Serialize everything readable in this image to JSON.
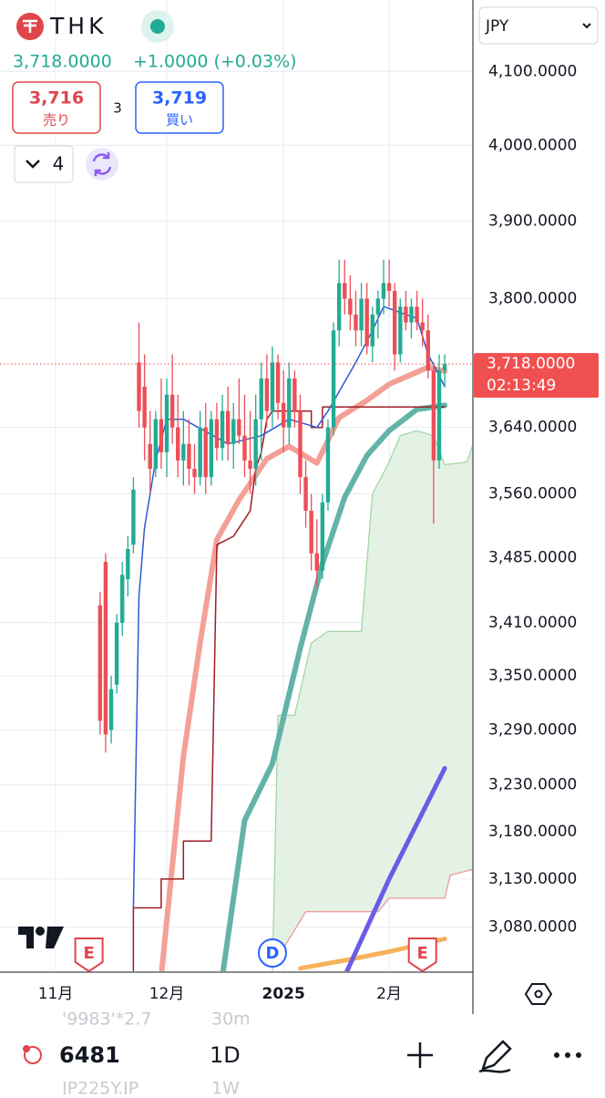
{
  "header": {
    "symbol": "THK",
    "price": "3,718.0000",
    "change": "+1.0000 (+0.03%)"
  },
  "trade": {
    "sell_price": "3,716",
    "sell_label": "売り",
    "spread": "3",
    "buy_price": "3,719",
    "buy_label": "買い"
  },
  "toolbar": {
    "layout_count": "4",
    "currency": "JPY"
  },
  "chart_data": {
    "type": "candlestick",
    "log_scale": true,
    "grid": true,
    "up_color": "#22ab94",
    "down_color": "#ec4f58",
    "xlim": [
      -18,
      66.9
    ],
    "ylim": [
      3035,
      4199
    ],
    "xticks": [
      {
        "value": -8,
        "label": "11月"
      },
      {
        "value": 12,
        "label": "12月"
      },
      {
        "value": 33,
        "label": "2025"
      },
      {
        "value": 52,
        "label": "2月"
      }
    ],
    "yticks": [
      {
        "value": 4100,
        "label": "4,100.0000"
      },
      {
        "value": 4000,
        "label": "4,000.0000"
      },
      {
        "value": 3900,
        "label": "3,900.0000"
      },
      {
        "value": 3800,
        "label": "3,800.0000"
      },
      {
        "value": 3640,
        "label": "3,640.0000"
      },
      {
        "value": 3560,
        "label": "3,560.0000"
      },
      {
        "value": 3485,
        "label": "3,485.0000"
      },
      {
        "value": 3410,
        "label": "3,410.0000"
      },
      {
        "value": 3350,
        "label": "3,350.0000"
      },
      {
        "value": 3290,
        "label": "3,290.0000"
      },
      {
        "value": 3230,
        "label": "3,230.0000"
      },
      {
        "value": 3180,
        "label": "3,180.0000"
      },
      {
        "value": 3130,
        "label": "3,130.0000"
      },
      {
        "value": 3080,
        "label": "3,080.0000"
      }
    ],
    "open": [
      3430,
      3480,
      3290,
      3340,
      3410,
      3460,
      3500,
      3720,
      3690,
      3620,
      3590,
      3650,
      3610,
      3680,
      3640,
      3600,
      3620,
      3590,
      3580,
      3640,
      3580,
      3650,
      3615,
      3660,
      3620,
      3650,
      3630,
      3600,
      3590,
      3650,
      3700,
      3660,
      3720,
      3670,
      3640,
      3700,
      3660,
      3580,
      3540,
      3490,
      3470,
      3550,
      3640,
      3760,
      3820,
      3800,
      3780,
      3760,
      3800,
      3740,
      3780,
      3800,
      3820,
      3810,
      3730,
      3790,
      3770,
      3790,
      3770,
      3760,
      3710,
      3600,
      3710
    ],
    "high": [
      3445,
      3490,
      3350,
      3420,
      3480,
      3510,
      3580,
      3770,
      3730,
      3660,
      3660,
      3700,
      3700,
      3730,
      3680,
      3660,
      3650,
      3620,
      3660,
      3670,
      3660,
      3670,
      3680,
      3690,
      3670,
      3700,
      3680,
      3660,
      3680,
      3720,
      3730,
      3740,
      3730,
      3710,
      3720,
      3710,
      3680,
      3600,
      3560,
      3530,
      3560,
      3650,
      3770,
      3850,
      3850,
      3830,
      3810,
      3820,
      3820,
      3790,
      3810,
      3850,
      3850,
      3820,
      3800,
      3810,
      3800,
      3810,
      3800,
      3780,
      3720,
      3730,
      3730
    ],
    "low": [
      3285,
      3265,
      3275,
      3330,
      3395,
      3440,
      3490,
      3640,
      3600,
      3560,
      3580,
      3590,
      3580,
      3620,
      3580,
      3570,
      3570,
      3560,
      3570,
      3560,
      3570,
      3600,
      3600,
      3600,
      3590,
      3620,
      3580,
      3560,
      3570,
      3600,
      3640,
      3640,
      3650,
      3610,
      3620,
      3640,
      3560,
      3520,
      3470,
      3450,
      3460,
      3540,
      3630,
      3740,
      3780,
      3760,
      3740,
      3740,
      3730,
      3720,
      3750,
      3780,
      3790,
      3710,
      3720,
      3760,
      3750,
      3760,
      3740,
      3700,
      3525,
      3590,
      3690
    ],
    "close": [
      3300,
      3285,
      3335,
      3410,
      3465,
      3495,
      3565,
      3660,
      3640,
      3590,
      3650,
      3610,
      3680,
      3640,
      3600,
      3620,
      3590,
      3580,
      3640,
      3580,
      3650,
      3615,
      3660,
      3620,
      3650,
      3630,
      3600,
      3590,
      3650,
      3700,
      3660,
      3720,
      3670,
      3640,
      3700,
      3660,
      3580,
      3540,
      3490,
      3470,
      3550,
      3640,
      3760,
      3820,
      3800,
      3780,
      3760,
      3800,
      3740,
      3780,
      3800,
      3820,
      3810,
      3730,
      3790,
      3770,
      3790,
      3770,
      3760,
      3710,
      3600,
      3710,
      3718
    ],
    "cloud": {
      "color": "#e3f2e5",
      "upper": {
        "color": "#a5d6a7",
        "x": [
          31,
          32,
          35,
          38,
          41,
          47,
          49,
          52,
          54,
          57,
          60,
          62,
          66,
          67
        ],
        "values": [
          3035,
          3306,
          3306,
          3387,
          3400,
          3400,
          3560,
          3598,
          3630,
          3636,
          3630,
          3595,
          3598,
          3618
        ]
      },
      "lower": {
        "color": "#ef9a9a",
        "x": [
          31,
          37,
          50,
          52,
          62,
          63,
          67
        ],
        "values": [
          3040,
          3096,
          3096,
          3110,
          3110,
          3134,
          3140
        ]
      }
    },
    "lines": [
      {
        "color": "#f6b25a",
        "width": 5,
        "x": [
          36,
          44,
          52,
          62
        ],
        "values": [
          3038,
          3046,
          3055,
          3068
        ]
      },
      {
        "color": "#6a5ce6",
        "width": 5,
        "x": [
          44,
          52,
          62
        ],
        "values": [
          3030,
          3130,
          3248
        ]
      },
      {
        "color": "#63b3a9",
        "width": 6,
        "x": [
          22,
          26,
          31,
          36,
          40,
          44,
          48,
          52,
          57,
          62
        ],
        "values": [
          3030,
          3192,
          3253,
          3381,
          3478,
          3556,
          3606,
          3636,
          3662,
          3667
        ]
      },
      {
        "color": "#f4a097",
        "width": 6,
        "x": [
          11,
          15,
          18,
          21,
          25,
          30,
          34,
          39,
          43,
          48,
          52,
          59,
          62
        ],
        "values": [
          3030,
          3261,
          3387,
          3506,
          3553,
          3602,
          3617,
          3597,
          3652,
          3673,
          3693,
          3714,
          3709
        ]
      },
      {
        "color": "#9e1c24",
        "width": 1.5,
        "x": [
          6,
          6,
          11,
          11,
          15,
          15,
          20,
          21,
          24,
          25,
          27,
          28,
          29,
          30,
          31,
          38,
          38,
          40,
          40,
          42,
          62
        ],
        "values": [
          3035,
          3100,
          3100,
          3130,
          3130,
          3170,
          3170,
          3500,
          3510,
          3520,
          3540,
          3590,
          3610,
          3650,
          3660,
          3660,
          3640,
          3640,
          3665,
          3665,
          3665
        ]
      },
      {
        "color": "#2b5ad6",
        "width": 1.5,
        "x": [
          6,
          7,
          8,
          10,
          12,
          15,
          23,
          29,
          34,
          39,
          41,
          46,
          49,
          51,
          57,
          59,
          62
        ],
        "values": [
          3100,
          3440,
          3520,
          3600,
          3650,
          3650,
          3620,
          3630,
          3650,
          3640,
          3660,
          3720,
          3760,
          3790,
          3775,
          3730,
          3690
        ]
      }
    ],
    "last_price": 3718,
    "last_price_label": "3,718.0000",
    "countdown": "02:13:49",
    "price_color": "#f0504f",
    "events": [
      {
        "x": -2,
        "label": "E",
        "color": "#e0454c"
      },
      {
        "x": 31,
        "label": "D",
        "color": "#2962ff"
      },
      {
        "x": 58,
        "label": "E",
        "color": "#e0454c"
      }
    ]
  },
  "watchlist_ghost": {
    "row1_symbol": "'9983'*2.7",
    "row1_interval": "30m",
    "row2_symbol": "JP225Y.JP",
    "row2_interval": "1W"
  },
  "bottom": {
    "symbol": "6481",
    "interval": "1D"
  }
}
